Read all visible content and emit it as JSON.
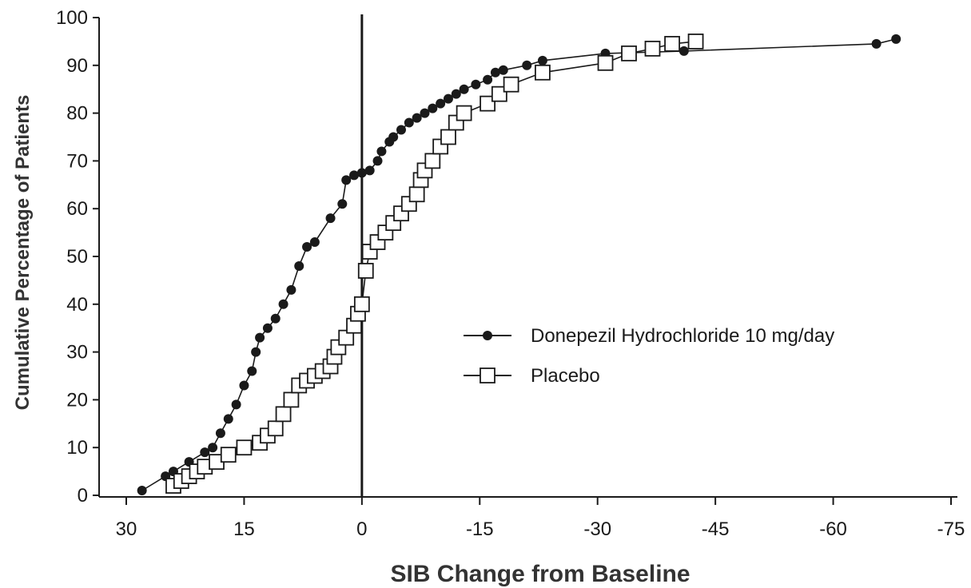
{
  "chart_data": {
    "type": "line",
    "title": "",
    "xlabel": "SIB Change from Baseline",
    "ylabel": "Cumulative Percentage of Patients",
    "xlim": [
      30,
      -75
    ],
    "ylim": [
      0,
      100
    ],
    "x_reversed": true,
    "xticks": [
      30,
      15,
      0,
      -15,
      -30,
      -45,
      -60,
      -75
    ],
    "xtick_labels": [
      "30",
      "15",
      "0",
      "-15",
      "-30",
      "-45",
      "-60",
      "-75"
    ],
    "yticks": [
      0,
      10,
      20,
      30,
      40,
      50,
      60,
      70,
      80,
      90,
      100
    ],
    "ytick_labels": [
      "0",
      "10",
      "20",
      "30",
      "40",
      "50",
      "60",
      "70",
      "80",
      "90",
      "100"
    ],
    "reference_line_x": 0,
    "grid": false,
    "legend_position": "center-right",
    "series": [
      {
        "name": "Donepezil Hydrochloride 10 mg/day",
        "marker": "filled-circle",
        "color": "#1a1a1a",
        "points": [
          [
            28,
            1
          ],
          [
            25,
            4
          ],
          [
            24,
            5
          ],
          [
            22,
            7
          ],
          [
            20,
            9
          ],
          [
            19,
            10
          ],
          [
            18,
            13
          ],
          [
            17,
            16
          ],
          [
            16,
            19
          ],
          [
            15,
            23
          ],
          [
            14,
            26
          ],
          [
            13.5,
            30
          ],
          [
            13,
            33
          ],
          [
            12,
            35
          ],
          [
            11,
            37
          ],
          [
            10,
            40
          ],
          [
            9,
            43
          ],
          [
            8,
            48
          ],
          [
            7,
            52
          ],
          [
            6,
            53
          ],
          [
            4,
            58
          ],
          [
            2.5,
            61
          ],
          [
            2,
            66
          ],
          [
            1,
            67
          ],
          [
            0,
            67.5
          ],
          [
            -1,
            68
          ],
          [
            -2,
            70
          ],
          [
            -2.5,
            72
          ],
          [
            -3.5,
            74
          ],
          [
            -4,
            75
          ],
          [
            -5,
            76.5
          ],
          [
            -6,
            78
          ],
          [
            -7,
            79
          ],
          [
            -8,
            80
          ],
          [
            -9,
            81
          ],
          [
            -10,
            82
          ],
          [
            -11,
            83
          ],
          [
            -12,
            84
          ],
          [
            -13,
            85
          ],
          [
            -14.5,
            86
          ],
          [
            -16,
            87
          ],
          [
            -17,
            88.5
          ],
          [
            -18,
            89
          ],
          [
            -21,
            90
          ],
          [
            -23,
            91
          ],
          [
            -31,
            92.5
          ],
          [
            -41,
            93
          ],
          [
            -65.5,
            94.5
          ],
          [
            -68,
            95.5
          ]
        ]
      },
      {
        "name": "Placebo",
        "marker": "open-square",
        "color": "#1a1a1a",
        "points": [
          [
            24,
            2
          ],
          [
            23,
            3
          ],
          [
            22,
            4
          ],
          [
            21,
            5
          ],
          [
            20,
            6
          ],
          [
            18.5,
            7
          ],
          [
            17,
            8.5
          ],
          [
            15,
            10
          ],
          [
            13,
            11
          ],
          [
            12,
            12.5
          ],
          [
            11,
            14
          ],
          [
            10,
            17
          ],
          [
            9,
            20
          ],
          [
            8,
            23
          ],
          [
            7,
            24
          ],
          [
            6,
            25
          ],
          [
            5,
            26
          ],
          [
            4,
            27
          ],
          [
            3.5,
            29
          ],
          [
            3,
            31
          ],
          [
            2,
            33
          ],
          [
            1,
            35.5
          ],
          [
            0.5,
            38
          ],
          [
            0,
            40
          ],
          [
            -0.5,
            47
          ],
          [
            -1,
            51
          ],
          [
            -2,
            53
          ],
          [
            -3,
            55
          ],
          [
            -4,
            57
          ],
          [
            -5,
            59
          ],
          [
            -6,
            61
          ],
          [
            -7,
            63
          ],
          [
            -7.5,
            66
          ],
          [
            -8,
            68
          ],
          [
            -9,
            70
          ],
          [
            -10,
            73
          ],
          [
            -11,
            75
          ],
          [
            -12,
            78
          ],
          [
            -13,
            80
          ],
          [
            -16,
            82
          ],
          [
            -17.5,
            84
          ],
          [
            -19,
            86
          ],
          [
            -23,
            88.5
          ],
          [
            -31,
            90.5
          ],
          [
            -34,
            92.5
          ],
          [
            -37,
            93.5
          ],
          [
            -39.5,
            94.5
          ],
          [
            -42.5,
            95
          ]
        ]
      }
    ]
  }
}
